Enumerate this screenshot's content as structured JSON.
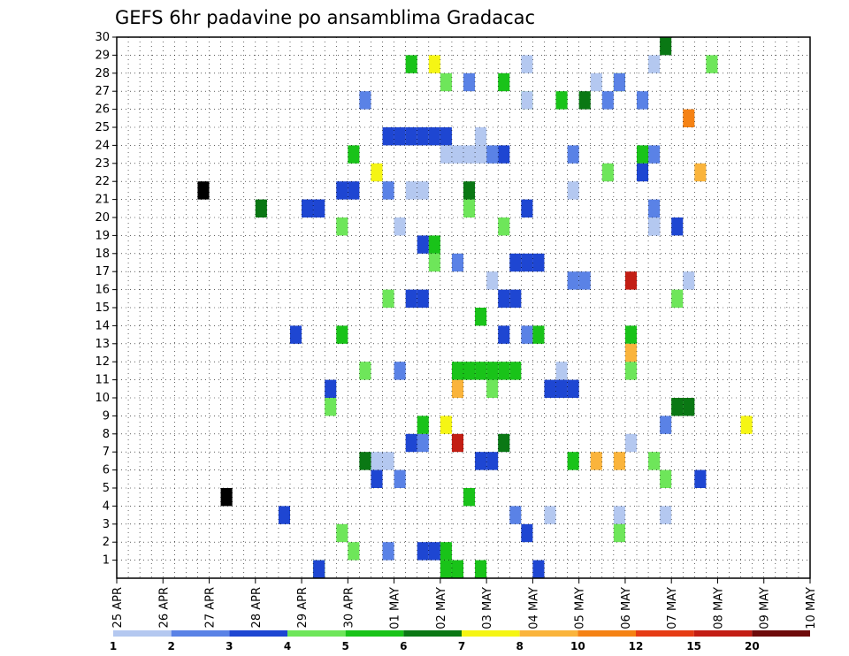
{
  "chart_data": {
    "type": "heatmap",
    "title": "GEFS 6hr padavine po ansamblima Gradacac",
    "xlabel": "",
    "ylabel": "",
    "x_ticks": [
      "25 APR",
      "26 APR",
      "27 APR",
      "28 APR",
      "29 APR",
      "30 APR",
      "01 MAY",
      "02 MAY",
      "03 MAY",
      "04 MAY",
      "05 MAY",
      "06 MAY",
      "07 MAY",
      "08 MAY",
      "09 MAY",
      "10 MAY"
    ],
    "x_range": [
      "2020-04-25 00Z",
      "2020-05-10 00Z"
    ],
    "x_step": "6hr",
    "y_ticks": [
      1,
      2,
      3,
      4,
      5,
      6,
      7,
      8,
      9,
      10,
      11,
      12,
      13,
      14,
      15,
      16,
      17,
      18,
      19,
      20,
      21,
      22,
      23,
      24,
      25,
      26,
      27,
      28,
      29,
      30
    ],
    "ylim": [
      0,
      30
    ],
    "grid": true,
    "colorbar": {
      "labels": [
        "1",
        "2",
        "3",
        "4",
        "5",
        "6",
        "7",
        "8",
        "10",
        "12",
        "15",
        "20"
      ],
      "colors": [
        "#b4c8f0",
        "#5a82e6",
        "#1e46d2",
        "#6ee65a",
        "#19c319",
        "#0a7814",
        "#f5f514",
        "#fab43c",
        "#f58214",
        "#e63c14",
        "#c31e14",
        "#6e0a0a"
      ]
    },
    "cells": [
      [
        7,
        28,
        0
      ],
      [
        9,
        27,
        0
      ],
      [
        12,
        5,
        0
      ],
      [
        14,
        2,
        0
      ],
      [
        15,
        2,
        0
      ],
      [
        19,
        3,
        0
      ],
      [
        23,
        1,
        0
      ],
      [
        26,
        1,
        0
      ],
      [
        27,
        3,
        0
      ],
      [
        28,
        3,
        0
      ],
      [
        33,
        3,
        0
      ],
      [
        38,
        0,
        0
      ],
      [
        39,
        0,
        0
      ],
      [
        46,
        2,
        0
      ],
      [
        45,
        0,
        0
      ],
      [
        48,
        3,
        0
      ],
      [
        50,
        7,
        0
      ],
      [
        44,
        3,
        0
      ],
      [
        28,
        4,
        1
      ],
      [
        29,
        7,
        0
      ],
      [
        30,
        3,
        0
      ],
      [
        31,
        4,
        0
      ],
      [
        32,
        3,
        0
      ],
      [
        35,
        3,
        0
      ],
      [
        43,
        3,
        0
      ],
      [
        51,
        3,
        0
      ],
      [
        16,
        1,
        1
      ],
      [
        17,
        5,
        0
      ],
      [
        19,
        4,
        0
      ],
      [
        20,
        4,
        0
      ],
      [
        22,
        0,
        1
      ],
      [
        24,
        0,
        0
      ],
      [
        29,
        4,
        5
      ],
      [
        31,
        0,
        0
      ],
      [
        33,
        0,
        0
      ],
      [
        35,
        2,
        0
      ],
      [
        37,
        0,
        0
      ],
      [
        39,
        1,
        1
      ],
      [
        40,
        5,
        0
      ],
      [
        41,
        7,
        0
      ],
      [
        46,
        0,
        0
      ],
      [
        47,
        1,
        0
      ],
      [
        19,
        2,
        1
      ],
      [
        20,
        3,
        0
      ],
      [
        21,
        3,
        0
      ],
      [
        23,
        2,
        5
      ],
      [
        25,
        2,
        0
      ],
      [
        28,
        0,
        3
      ],
      [
        33,
        2,
        1
      ],
      [
        35,
        0,
        0
      ],
      [
        42,
        1,
        0
      ],
      [
        43,
        7,
        0
      ],
      [
        44,
        10,
        0
      ],
      [
        45,
        1,
        0
      ],
      [
        46,
        3,
        0
      ],
      [
        48,
        2,
        0
      ],
      [
        16,
        2,
        1
      ],
      [
        17,
        3,
        0
      ],
      [
        22,
        6,
        0
      ],
      [
        24,
        1,
        0
      ],
      [
        25,
        2,
        1
      ],
      [
        27,
        6,
        0
      ],
      [
        28,
        6,
        0
      ],
      [
        30,
        5,
        0
      ],
      [
        33,
        5,
        0
      ],
      [
        34,
        2,
        2
      ],
      [
        36,
        2,
        0
      ],
      [
        37,
        2,
        2
      ],
      [
        39,
        1,
        0
      ],
      [
        31,
        2,
        1
      ],
      [
        32,
        0,
        0
      ],
      [
        35,
        2,
        0
      ],
      [
        43,
        0,
        0
      ],
      [
        46,
        0,
        0
      ],
      [
        47,
        5,
        0
      ],
      [
        48,
        5,
        1
      ],
      [
        23,
        1,
        0
      ],
      [
        24,
        1,
        0
      ],
      [
        25,
        0,
        1
      ],
      [
        26,
        2,
        1
      ],
      [
        29,
        1,
        0
      ],
      [
        30,
        1,
        0
      ],
      [
        33,
        2,
        0
      ],
      [
        35,
        0,
        0
      ],
      [
        43,
        1,
        0
      ],
      [
        44,
        0,
        0
      ],
      [
        46,
        1,
        0
      ],
      [
        17,
        2,
        0
      ],
      [
        18,
        2,
        0
      ],
      [
        21,
        1,
        0
      ],
      [
        26,
        2,
        0
      ],
      [
        28,
        4,
        0
      ],
      [
        33,
        2,
        0
      ],
      [
        34,
        1,
        0
      ],
      [
        35,
        1,
        0
      ],
      [
        46,
        1,
        0
      ],
      [
        47,
        0,
        0
      ],
      [
        49,
        0,
        0
      ],
      [
        54,
        6,
        0
      ],
      [
        21,
        5,
        0
      ],
      [
        29,
        10,
        0
      ],
      [
        32,
        1,
        0
      ],
      [
        41,
        0,
        0
      ],
      [
        44,
        4,
        0
      ],
      [
        45,
        4,
        0
      ],
      [
        18,
        3,
        0
      ],
      [
        19,
        3,
        0
      ],
      [
        22,
        2,
        0
      ],
      [
        23,
        3,
        0
      ],
      [
        25,
        4,
        0
      ],
      [
        26,
        4,
        0
      ],
      [
        27,
        4,
        0
      ],
      [
        30,
        4,
        0
      ],
      [
        31,
        4,
        0
      ],
      [
        33,
        4,
        0
      ],
      [
        36,
        4,
        0
      ],
      [
        38,
        4,
        0
      ],
      [
        39,
        4,
        0
      ],
      [
        42,
        3,
        0
      ],
      [
        43,
        3,
        0
      ],
      [
        44,
        7,
        0
      ],
      [
        45,
        2,
        0
      ],
      [
        47,
        3,
        0
      ],
      [
        48,
        3,
        0
      ],
      [
        49,
        8,
        0
      ],
      [
        50,
        2,
        0
      ]
    ]
  }
}
